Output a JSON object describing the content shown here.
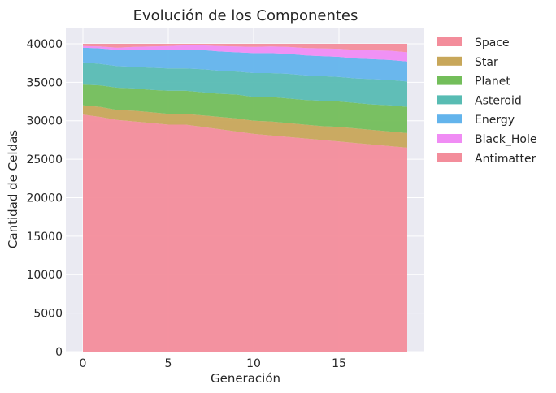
{
  "chart_data": {
    "type": "area",
    "stacked": true,
    "title": "Evolución de los Componentes",
    "xlabel": "Generación",
    "ylabel": "Cantidad de Celdas",
    "xlim": [
      -1,
      20
    ],
    "ylim": [
      0,
      42000
    ],
    "xticks": [
      0,
      5,
      10,
      15
    ],
    "yticks": [
      0,
      5000,
      10000,
      15000,
      20000,
      25000,
      30000,
      35000,
      40000
    ],
    "grid": true,
    "legend_position": "outside-top-right",
    "x": [
      0,
      1,
      2,
      3,
      4,
      5,
      6,
      7,
      8,
      9,
      10,
      11,
      12,
      13,
      14,
      15,
      16,
      17,
      18,
      19
    ],
    "series": [
      {
        "name": "Space",
        "color": "#f38d9b",
        "values": [
          30800,
          30500,
          30100,
          29900,
          29700,
          29500,
          29500,
          29200,
          28900,
          28600,
          28300,
          28100,
          27900,
          27700,
          27500,
          27300,
          27100,
          26900,
          26700,
          26500
        ]
      },
      {
        "name": "Star",
        "color": "#c8a75a",
        "values": [
          1200,
          1300,
          1300,
          1400,
          1400,
          1400,
          1400,
          1500,
          1600,
          1700,
          1700,
          1800,
          1800,
          1800,
          1800,
          1900,
          1900,
          1900,
          1900,
          1900
        ]
      },
      {
        "name": "Planet",
        "color": "#73be5a",
        "values": [
          2700,
          2800,
          2900,
          2900,
          2900,
          3000,
          3000,
          3000,
          3000,
          3100,
          3100,
          3200,
          3200,
          3200,
          3300,
          3300,
          3300,
          3300,
          3400,
          3400
        ]
      },
      {
        "name": "Asteroid",
        "color": "#58bcb3",
        "values": [
          2900,
          2800,
          2800,
          2800,
          2900,
          2900,
          2900,
          3000,
          3000,
          3000,
          3100,
          3100,
          3200,
          3200,
          3200,
          3200,
          3200,
          3300,
          3300,
          3300
        ]
      },
      {
        "name": "Energy",
        "color": "#63b4ec",
        "values": [
          1900,
          2000,
          2100,
          2200,
          2300,
          2400,
          2400,
          2500,
          2500,
          2500,
          2600,
          2600,
          2600,
          2600,
          2600,
          2600,
          2600,
          2600,
          2600,
          2600
        ]
      },
      {
        "name": "Black_Hole",
        "color": "#f08cf4",
        "values": [
          200,
          250,
          300,
          400,
          450,
          500,
          600,
          600,
          700,
          750,
          800,
          850,
          900,
          950,
          1000,
          1050,
          1100,
          1150,
          1200,
          1200
        ]
      },
      {
        "name": "Antimatter",
        "color": "#f38d9b",
        "values": [
          300,
          350,
          500,
          400,
          350,
          300,
          200,
          200,
          300,
          350,
          400,
          350,
          400,
          550,
          600,
          650,
          800,
          850,
          900,
          1100
        ]
      }
    ]
  }
}
